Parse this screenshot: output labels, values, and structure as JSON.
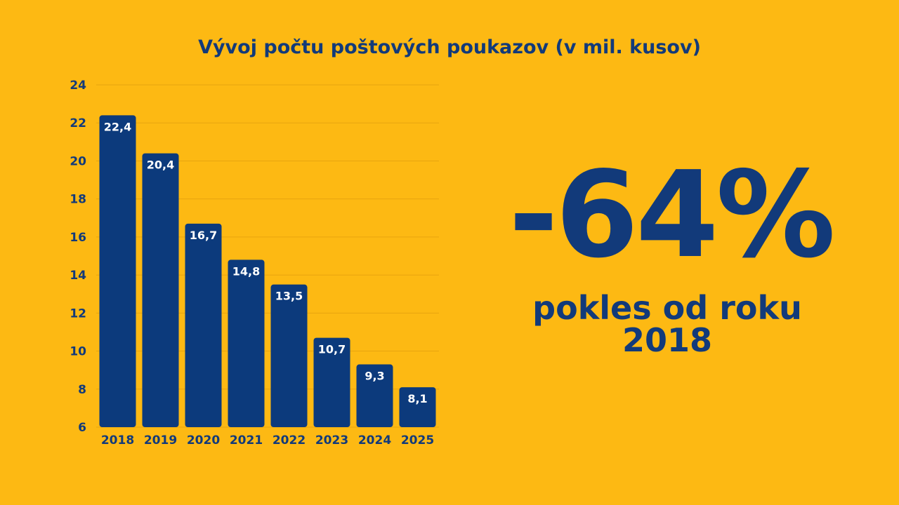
{
  "colors": {
    "background": "#FDB913",
    "bar": "#0C3A7C",
    "text": "#123A7A",
    "bar_label": "#FFFFFF",
    "grid": "#E8A50F"
  },
  "headline": {
    "value": "-64%",
    "caption": "pokles od roku 2018"
  },
  "chart_data": {
    "type": "bar",
    "title": "Vývoj počtu poštových poukazov (v mil. kusov)",
    "xlabel": "",
    "ylabel": "",
    "categories": [
      "2018",
      "2019",
      "2020",
      "2021",
      "2022",
      "2023",
      "2024",
      "2025"
    ],
    "values": [
      22.4,
      20.4,
      16.7,
      14.8,
      13.5,
      10.7,
      9.3,
      8.1
    ],
    "data_labels": [
      "22,4",
      "20,4",
      "16,7",
      "14,8",
      "13,5",
      "10,7",
      "9,3",
      "8,1"
    ],
    "ylim": [
      6,
      24
    ],
    "yticks": [
      "6",
      "8",
      "10",
      "12",
      "14",
      "16",
      "18",
      "20",
      "22",
      "24"
    ],
    "grid": true,
    "legend": "none"
  }
}
